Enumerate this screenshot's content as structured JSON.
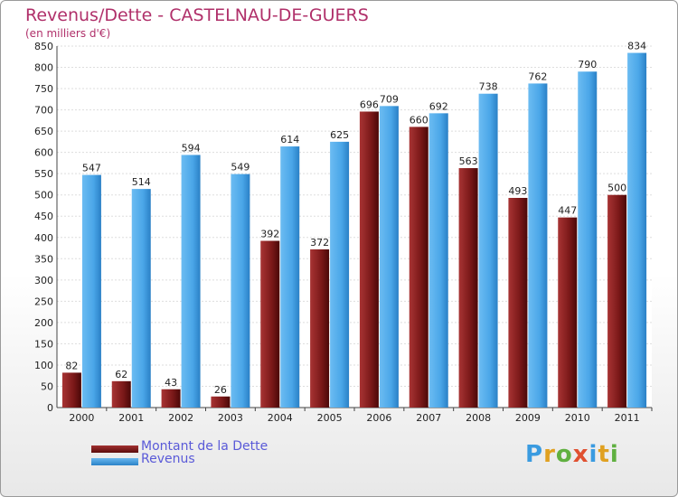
{
  "title": "Revenus/Dette - CASTELNAU-DE-GUERS",
  "subtitle": "(en milliers d'€)",
  "legend": {
    "dette_label": "Montant de la Dette",
    "revenus_label": "Revenus"
  },
  "logo": "Proxiti",
  "colors": {
    "dette": "#7a1818",
    "revenus": "#3f9fe3",
    "title": "#b0306a",
    "legend_text": "#5a5ad8"
  },
  "chart_data": {
    "type": "bar",
    "categories": [
      "2000",
      "2001",
      "2002",
      "2003",
      "2004",
      "2005",
      "2006",
      "2007",
      "2008",
      "2009",
      "2010",
      "2011"
    ],
    "series": [
      {
        "name": "Montant de la Dette",
        "values": [
          82,
          62,
          43,
          26,
          392,
          372,
          696,
          660,
          563,
          493,
          447,
          500
        ]
      },
      {
        "name": "Revenus",
        "values": [
          547,
          514,
          594,
          549,
          614,
          625,
          709,
          692,
          738,
          762,
          790,
          834
        ]
      }
    ],
    "title": "Revenus/Dette - CASTELNAU-DE-GUERS",
    "ylabel": "(en milliers d'€)",
    "ylim": [
      0,
      850
    ],
    "yticks": [
      0,
      50,
      100,
      150,
      200,
      250,
      300,
      350,
      400,
      450,
      500,
      550,
      600,
      650,
      700,
      750,
      800,
      850
    ],
    "grid": true,
    "legend_position": "bottom-left"
  }
}
